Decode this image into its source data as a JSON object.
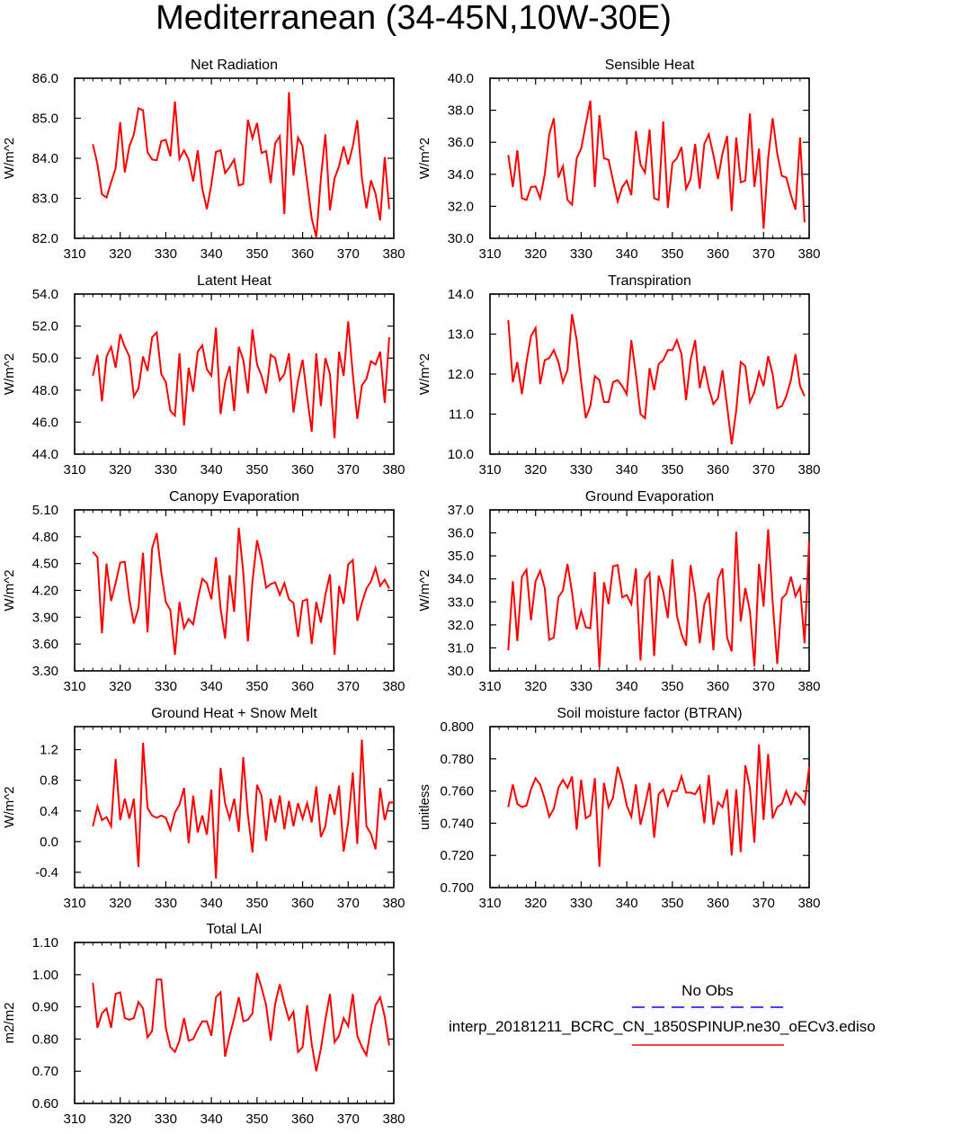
{
  "title": "Mediterranean (34-45N,10W-30E)",
  "legend": {
    "obs_label": "No Obs",
    "obs_color": "#0000ff",
    "model_label": "interp_20181211_BCRC_CN_1850SPINUP.ne30_oECv3.ediso",
    "model_color": "#ff0000"
  },
  "chart_data": [
    {
      "type": "line",
      "title": "Net Radiation",
      "ylabel": "W/m^2",
      "xlim": [
        310,
        380
      ],
      "xticks": [
        "310",
        "320",
        "330",
        "340",
        "350",
        "360",
        "370",
        "380"
      ],
      "ylim": [
        82.0,
        86.0
      ],
      "yticks": [
        "82.0",
        "83.0",
        "84.0",
        "85.0",
        "86.0"
      ],
      "x_start": 314,
      "series": [
        {
          "color": "#ff0000",
          "values": [
            84.35,
            83.85,
            83.1,
            83.02,
            83.4,
            83.75,
            84.9,
            83.65,
            84.3,
            84.6,
            85.25,
            85.2,
            84.15,
            83.97,
            83.95,
            84.43,
            84.46,
            84.05,
            85.42,
            83.98,
            84.2,
            83.97,
            83.42,
            84.2,
            83.24,
            82.73,
            83.35,
            84.16,
            84.2,
            83.63,
            83.78,
            83.97,
            83.32,
            83.36,
            84.96,
            84.5,
            84.88,
            84.13,
            84.18,
            83.38,
            84.38,
            84.55,
            82.61,
            85.65,
            83.57,
            84.52,
            84.3,
            83.4,
            82.5,
            82.03,
            83.5,
            84.6,
            82.7,
            83.5,
            83.8,
            84.3,
            83.85,
            84.3,
            84.95,
            83.5,
            82.75,
            83.45,
            83.12,
            82.45,
            84.03,
            82.73
          ]
        }
      ]
    },
    {
      "type": "line",
      "title": "Sensible Heat",
      "ylabel": "W/m^2",
      "xlim": [
        310,
        380
      ],
      "xticks": [
        "310",
        "320",
        "330",
        "340",
        "350",
        "360",
        "370",
        "380"
      ],
      "ylim": [
        30.0,
        40.0
      ],
      "yticks": [
        "30.0",
        "32.0",
        "34.0",
        "36.0",
        "38.0",
        "40.0"
      ],
      "x_start": 314,
      "series": [
        {
          "color": "#ff0000",
          "values": [
            35.2,
            33.2,
            35.5,
            32.5,
            32.4,
            33.2,
            33.25,
            32.5,
            34.0,
            36.5,
            37.5,
            33.8,
            34.5,
            32.4,
            32.1,
            35.0,
            35.6,
            37.1,
            38.6,
            33.2,
            37.7,
            35.0,
            34.9,
            33.6,
            32.3,
            33.2,
            33.6,
            32.7,
            36.7,
            34.6,
            34.1,
            36.8,
            32.5,
            32.4,
            37.3,
            31.9,
            34.7,
            35.0,
            35.7,
            33.1,
            33.7,
            35.9,
            33.1,
            35.9,
            36.5,
            35.2,
            33.7,
            35.3,
            36.4,
            31.7,
            36.3,
            33.5,
            33.6,
            37.8,
            33.2,
            35.6,
            30.6,
            35.0,
            37.5,
            35.3,
            33.9,
            33.8,
            32.7,
            31.8,
            36.3,
            31.0
          ]
        }
      ]
    },
    {
      "type": "line",
      "title": "Latent Heat",
      "ylabel": "W/m^2",
      "xlim": [
        310,
        380
      ],
      "xticks": [
        "310",
        "320",
        "330",
        "340",
        "350",
        "360",
        "370",
        "380"
      ],
      "ylim": [
        44.0,
        54.0
      ],
      "yticks": [
        "44.0",
        "46.0",
        "48.0",
        "50.0",
        "52.0",
        "54.0"
      ],
      "x_start": 314,
      "series": [
        {
          "color": "#ff0000",
          "values": [
            48.9,
            50.2,
            47.3,
            50.1,
            50.7,
            49.4,
            51.5,
            50.7,
            50.1,
            47.6,
            48.1,
            50.1,
            49.2,
            51.3,
            51.6,
            49.0,
            48.5,
            46.7,
            46.4,
            50.3,
            45.8,
            49.4,
            47.9,
            50.4,
            50.8,
            49.3,
            48.9,
            51.9,
            46.5,
            48.5,
            49.5,
            46.7,
            50.7,
            49.9,
            47.8,
            51.8,
            49.6,
            48.9,
            47.8,
            50.2,
            50.0,
            48.6,
            49.0,
            50.3,
            46.6,
            48.6,
            49.9,
            47.6,
            45.4,
            50.3,
            47.0,
            50.0,
            49.0,
            45.0,
            50.4,
            48.9,
            52.3,
            49.0,
            46.2,
            48.3,
            48.7,
            49.8,
            49.6,
            50.4,
            47.2,
            51.3
          ]
        }
      ]
    },
    {
      "type": "line",
      "title": "Transpiration",
      "ylabel": "W/m^2",
      "xlim": [
        310,
        380
      ],
      "xticks": [
        "310",
        "320",
        "330",
        "340",
        "350",
        "360",
        "370",
        "380"
      ],
      "ylim": [
        10.0,
        14.0
      ],
      "yticks": [
        "10.0",
        "11.0",
        "12.0",
        "13.0",
        "14.0"
      ],
      "x_start": 314,
      "series": [
        {
          "color": "#ff0000",
          "values": [
            13.35,
            11.8,
            12.3,
            11.5,
            12.3,
            12.95,
            13.15,
            11.75,
            12.35,
            12.4,
            12.6,
            12.3,
            11.8,
            12.1,
            13.5,
            12.85,
            11.8,
            10.9,
            11.2,
            11.95,
            11.85,
            11.3,
            11.3,
            11.8,
            11.85,
            11.7,
            11.5,
            12.85,
            12.0,
            11.0,
            10.9,
            12.15,
            11.6,
            12.25,
            12.35,
            12.6,
            12.6,
            12.85,
            12.5,
            11.35,
            12.35,
            12.85,
            11.65,
            12.2,
            11.65,
            11.25,
            11.4,
            12.1,
            11.2,
            10.25,
            11.1,
            12.3,
            12.2,
            11.3,
            11.55,
            12.05,
            11.7,
            12.45,
            12.0,
            11.15,
            11.2,
            11.45,
            11.85,
            12.5,
            11.7,
            11.45
          ]
        }
      ]
    },
    {
      "type": "line",
      "title": "Canopy Evaporation",
      "ylabel": "W/m^2",
      "xlim": [
        310,
        380
      ],
      "xticks": [
        "310",
        "320",
        "330",
        "340",
        "350",
        "360",
        "370",
        "380"
      ],
      "ylim": [
        3.3,
        5.1
      ],
      "yticks": [
        "3.30",
        "3.60",
        "3.90",
        "4.20",
        "4.50",
        "4.80",
        "5.10"
      ],
      "x_start": 314,
      "series": [
        {
          "color": "#ff0000",
          "values": [
            4.63,
            4.57,
            3.72,
            4.5,
            4.08,
            4.28,
            4.51,
            4.52,
            4.1,
            3.83,
            4.0,
            4.62,
            3.73,
            4.67,
            4.84,
            4.4,
            4.07,
            3.98,
            3.48,
            4.07,
            3.78,
            3.88,
            3.82,
            4.1,
            4.33,
            4.28,
            4.1,
            4.57,
            4.0,
            3.66,
            4.37,
            3.96,
            4.9,
            4.4,
            3.63,
            4.3,
            4.76,
            4.54,
            4.23,
            4.27,
            4.29,
            4.15,
            4.28,
            4.1,
            4.06,
            3.68,
            4.08,
            4.1,
            3.6,
            4.07,
            3.84,
            4.15,
            4.38,
            3.48,
            4.25,
            4.05,
            4.49,
            4.54,
            3.86,
            4.06,
            4.22,
            4.3,
            4.45,
            4.25,
            4.32,
            4.22
          ]
        }
      ]
    },
    {
      "type": "line",
      "title": "Ground Evaporation",
      "ylabel": "W/m^2",
      "xlim": [
        310,
        380
      ],
      "xticks": [
        "310",
        "320",
        "330",
        "340",
        "350",
        "360",
        "370",
        "380"
      ],
      "ylim": [
        30.0,
        37.0
      ],
      "yticks": [
        "30.0",
        "31.0",
        "32.0",
        "33.0",
        "34.0",
        "35.0",
        "36.0",
        "37.0"
      ],
      "x_start": 314,
      "series": [
        {
          "color": "#ff0000",
          "values": [
            30.9,
            33.9,
            31.3,
            34.1,
            34.4,
            32.2,
            33.9,
            34.35,
            33.6,
            31.35,
            31.45,
            33.2,
            33.5,
            34.65,
            33.4,
            31.8,
            32.6,
            31.9,
            31.85,
            34.3,
            30.15,
            33.85,
            32.9,
            34.55,
            34.6,
            33.2,
            33.3,
            32.9,
            34.45,
            30.45,
            33.95,
            34.25,
            30.65,
            34.15,
            33.45,
            32.3,
            34.85,
            32.4,
            31.6,
            31.1,
            34.6,
            33.3,
            31.2,
            32.9,
            33.4,
            30.9,
            34.0,
            34.45,
            31.45,
            30.85,
            36.05,
            32.15,
            33.6,
            32.6,
            30.2,
            34.65,
            32.8,
            36.15,
            33.0,
            30.3,
            33.15,
            33.35,
            34.1,
            33.25,
            33.65,
            31.2,
            35.65
          ]
        }
      ]
    },
    {
      "type": "line",
      "title": "Ground Heat + Snow Melt",
      "ylabel": "W/m^2",
      "xlim": [
        310,
        380
      ],
      "xticks": [
        "310",
        "320",
        "330",
        "340",
        "350",
        "360",
        "370",
        "380"
      ],
      "ylim": [
        -0.6,
        1.5
      ],
      "yticks": [
        "-0.4",
        "0.0",
        "0.4",
        "0.8",
        "1.2"
      ],
      "ytick_values": [
        -0.4,
        0.0,
        0.4,
        0.8,
        1.2
      ],
      "x_start": 314,
      "series": [
        {
          "color": "#ff0000",
          "values": [
            0.2,
            0.46,
            0.28,
            0.32,
            0.2,
            1.08,
            0.28,
            0.56,
            0.3,
            0.56,
            -0.33,
            1.29,
            0.44,
            0.34,
            0.31,
            0.34,
            0.31,
            0.15,
            0.38,
            0.48,
            0.7,
            -0.02,
            0.6,
            0.12,
            0.34,
            0.09,
            0.68,
            -0.48,
            0.96,
            0.5,
            0.3,
            0.56,
            0.13,
            1.1,
            0.35,
            -0.14,
            0.74,
            0.6,
            0.01,
            0.56,
            0.25,
            0.6,
            0.16,
            0.53,
            0.2,
            0.5,
            0.3,
            0.5,
            0.25,
            0.72,
            0.06,
            0.2,
            0.62,
            0.35,
            0.73,
            -0.13,
            0.25,
            0.9,
            -0.03,
            1.33,
            0.2,
            0.1,
            -0.1,
            0.7,
            0.28,
            0.51,
            0.51
          ]
        }
      ]
    },
    {
      "type": "line",
      "title": "Soil moisture factor (BTRAN)",
      "ylabel": "unitless",
      "xlim": [
        310,
        380
      ],
      "xticks": [
        "310",
        "320",
        "330",
        "340",
        "350",
        "360",
        "370",
        "380"
      ],
      "ylim": [
        0.7,
        0.8
      ],
      "yticks": [
        "0.700",
        "0.720",
        "0.740",
        "0.760",
        "0.780",
        "0.800"
      ],
      "x_start": 314,
      "series": [
        {
          "color": "#ff0000",
          "values": [
            0.75,
            0.764,
            0.752,
            0.75,
            0.751,
            0.761,
            0.768,
            0.764,
            0.755,
            0.744,
            0.749,
            0.762,
            0.767,
            0.762,
            0.769,
            0.736,
            0.767,
            0.743,
            0.745,
            0.768,
            0.713,
            0.765,
            0.75,
            0.756,
            0.775,
            0.765,
            0.751,
            0.744,
            0.764,
            0.739,
            0.751,
            0.765,
            0.731,
            0.758,
            0.761,
            0.751,
            0.76,
            0.76,
            0.769,
            0.759,
            0.759,
            0.758,
            0.763,
            0.74,
            0.77,
            0.739,
            0.753,
            0.75,
            0.761,
            0.72,
            0.761,
            0.722,
            0.776,
            0.762,
            0.728,
            0.789,
            0.742,
            0.783,
            0.743,
            0.75,
            0.752,
            0.76,
            0.752,
            0.759,
            0.756,
            0.752,
            0.775
          ]
        }
      ]
    },
    {
      "type": "line",
      "title": "Total LAI",
      "ylabel": "m2/m2",
      "xlim": [
        310,
        380
      ],
      "xticks": [
        "310",
        "320",
        "330",
        "340",
        "350",
        "360",
        "370",
        "380"
      ],
      "ylim": [
        0.6,
        1.1
      ],
      "yticks": [
        "0.60",
        "0.70",
        "0.80",
        "0.90",
        "1.00",
        "1.10"
      ],
      "x_start": 314,
      "series": [
        {
          "color": "#ff0000",
          "values": [
            0.975,
            0.835,
            0.88,
            0.895,
            0.835,
            0.94,
            0.945,
            0.865,
            0.86,
            0.865,
            0.915,
            0.895,
            0.805,
            0.825,
            0.985,
            0.985,
            0.835,
            0.775,
            0.76,
            0.795,
            0.865,
            0.795,
            0.8,
            0.83,
            0.855,
            0.855,
            0.81,
            0.93,
            0.945,
            0.745,
            0.81,
            0.865,
            0.93,
            0.855,
            0.86,
            0.88,
            1.005,
            0.96,
            0.905,
            0.795,
            0.91,
            0.97,
            0.91,
            0.86,
            0.885,
            0.76,
            0.775,
            0.905,
            0.785,
            0.7,
            0.77,
            0.86,
            0.94,
            0.79,
            0.81,
            0.865,
            0.84,
            0.94,
            0.81,
            0.775,
            0.75,
            0.835,
            0.905,
            0.93,
            0.87,
            0.78
          ]
        }
      ]
    }
  ]
}
